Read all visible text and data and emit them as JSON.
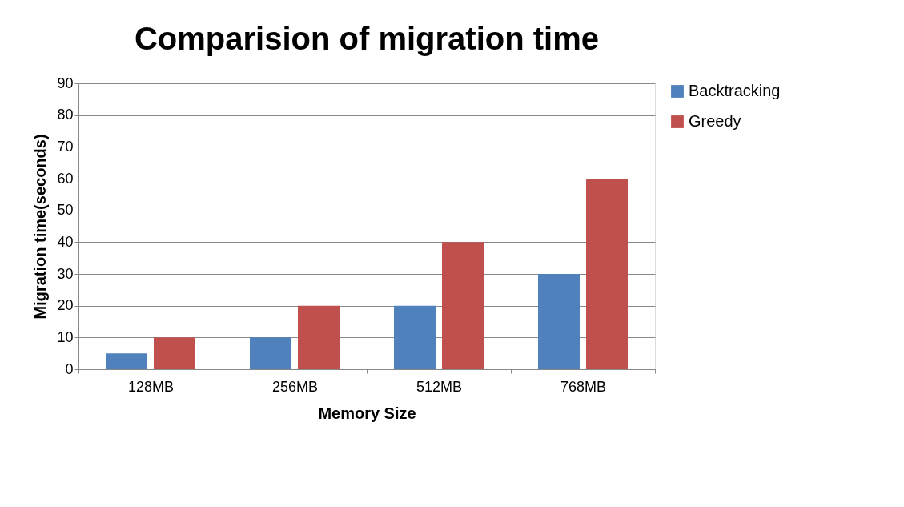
{
  "chart_data": {
    "type": "bar",
    "title": "Comparision of migration time",
    "xlabel": "Memory Size",
    "ylabel": "Migration time(seconds)",
    "categories": [
      "128MB",
      "256MB",
      "512MB",
      "768MB"
    ],
    "series": [
      {
        "name": "Backtracking",
        "color": "#4f81bd",
        "values": [
          5,
          10,
          20,
          30
        ]
      },
      {
        "name": "Greedy",
        "color": "#c0504d",
        "values": [
          10,
          20,
          40,
          60
        ]
      }
    ],
    "ylim": [
      0,
      90
    ],
    "yticks": [
      0,
      10,
      20,
      30,
      40,
      50,
      60,
      70,
      80,
      90
    ],
    "grid": "y",
    "legend": "right"
  }
}
